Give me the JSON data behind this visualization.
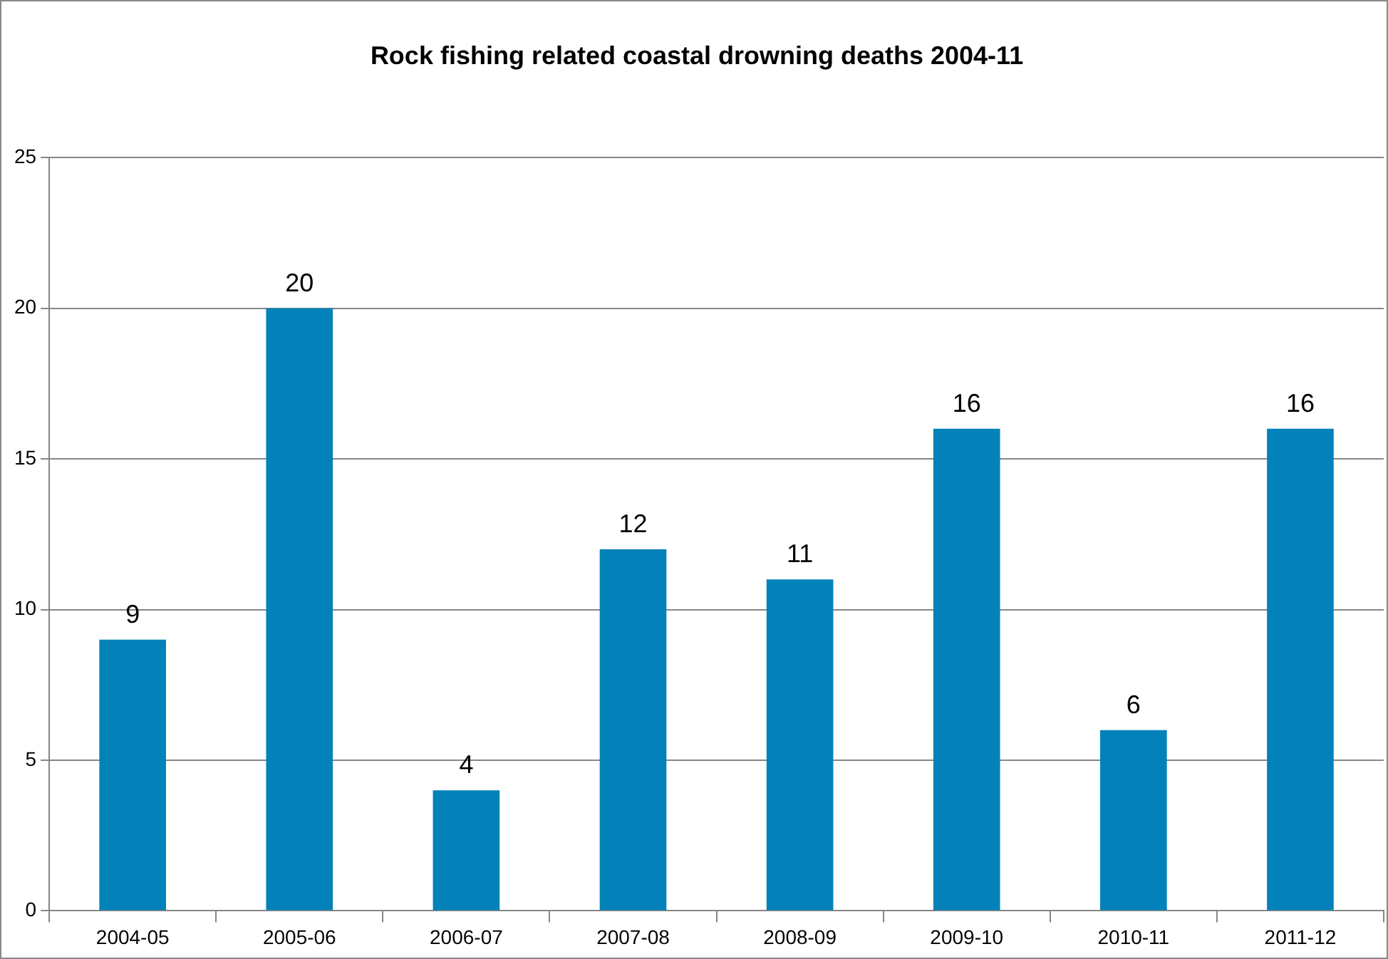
{
  "chart_data": {
    "type": "bar",
    "title": "Rock fishing related coastal drowning deaths 2004-11",
    "categories": [
      "2004-05",
      "2005-06",
      "2006-07",
      "2007-08",
      "2008-09",
      "2009-10",
      "2010-11",
      "2011-12"
    ],
    "values": [
      9,
      20,
      4,
      12,
      11,
      16,
      6,
      16
    ],
    "color": "#0282b9",
    "ylim": [
      0,
      25
    ],
    "yticks": [
      0,
      5,
      10,
      15,
      20,
      25
    ],
    "grid": "y",
    "legend": false,
    "data_labels": true
  }
}
